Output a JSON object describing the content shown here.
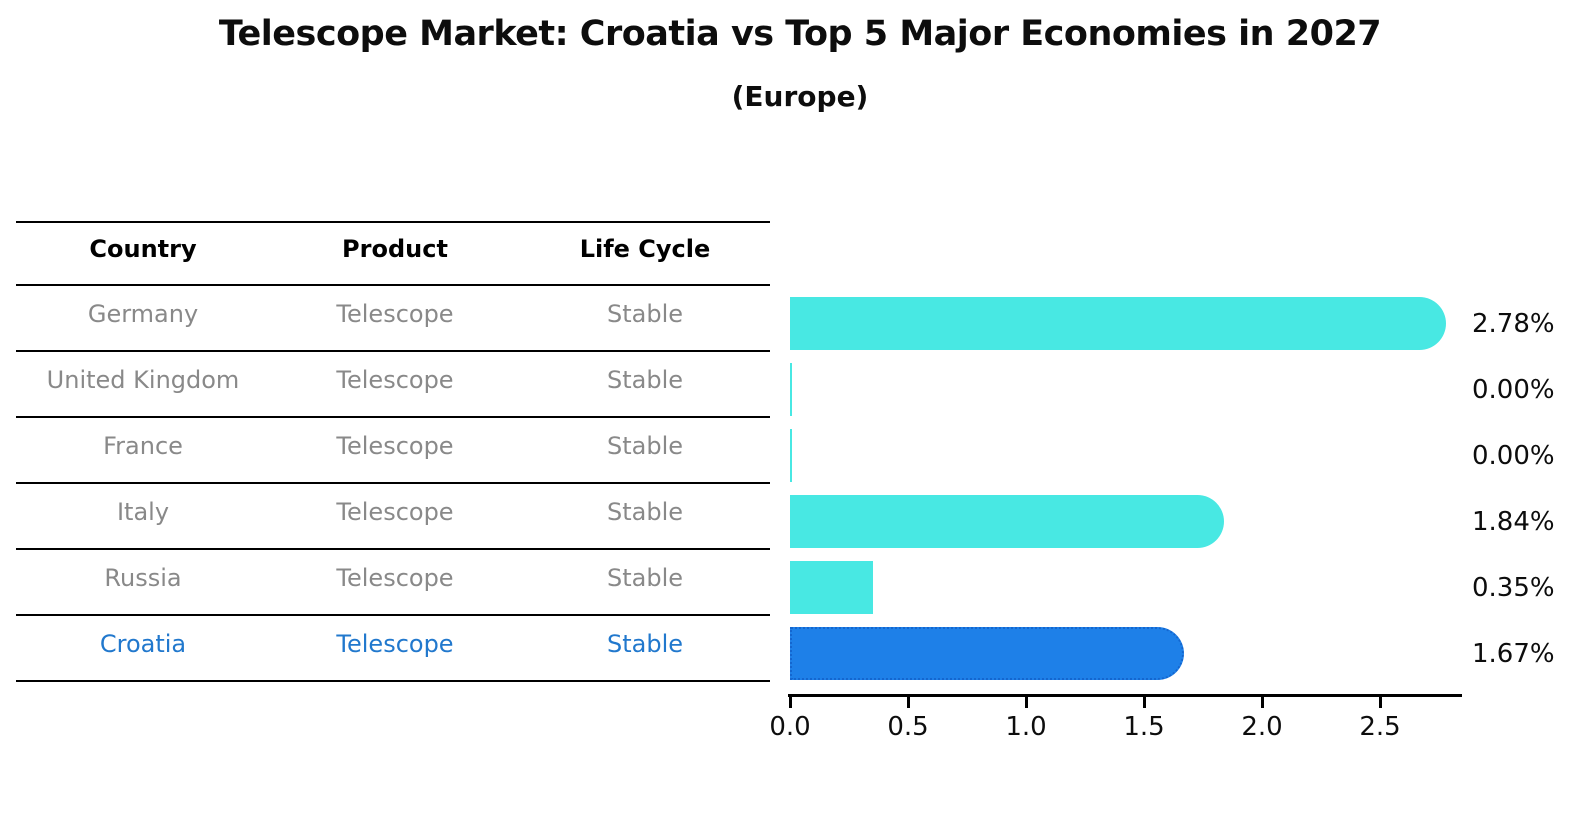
{
  "title": "Telescope Market: Croatia vs Top 5 Major Economies in 2027",
  "subtitle": "(Europe)",
  "colors": {
    "bar_default": "#48e8e3",
    "bar_highlight": "#1e80e8",
    "bar_highlight_border": "#1466cf",
    "row_text": "#898989",
    "highlight_text": "#2178cd",
    "axis": "#000000"
  },
  "table": {
    "headers": [
      "Country",
      "Product",
      "Life Cycle"
    ],
    "rows": [
      {
        "country": "Germany",
        "product": "Telescope",
        "life_cycle": "Stable",
        "highlight": false
      },
      {
        "country": "United Kingdom",
        "product": "Telescope",
        "life_cycle": "Stable",
        "highlight": false
      },
      {
        "country": "France",
        "product": "Telescope",
        "life_cycle": "Stable",
        "highlight": false
      },
      {
        "country": "Italy",
        "product": "Telescope",
        "life_cycle": "Stable",
        "highlight": false
      },
      {
        "country": "Russia",
        "product": "Telescope",
        "life_cycle": "Stable",
        "highlight": false
      },
      {
        "country": "Croatia",
        "product": "Telescope",
        "life_cycle": "Stable",
        "highlight": true
      }
    ]
  },
  "chart_data": {
    "type": "bar",
    "orientation": "horizontal",
    "title": "Telescope Market: Croatia vs Top 5 Major Economies in 2027 (Europe)",
    "categories": [
      "Germany",
      "United Kingdom",
      "France",
      "Italy",
      "Russia",
      "Croatia"
    ],
    "values": [
      2.78,
      0.0,
      0.0,
      1.84,
      0.35,
      1.67
    ],
    "value_labels": [
      "2.78%",
      "0.00%",
      "0.00%",
      "1.84%",
      "0.35%",
      "1.67%"
    ],
    "rounded_caps": [
      true,
      false,
      false,
      true,
      false,
      true
    ],
    "highlight_index": 5,
    "xlabel": "",
    "ylabel": "",
    "xlim": [
      0.0,
      2.85
    ],
    "xticks": [
      0.0,
      0.5,
      1.0,
      1.5,
      2.0,
      2.5
    ],
    "xtick_labels": [
      "0.0",
      "0.5",
      "1.0",
      "1.5",
      "2.0",
      "2.5"
    ],
    "grid": false,
    "legend": false
  }
}
